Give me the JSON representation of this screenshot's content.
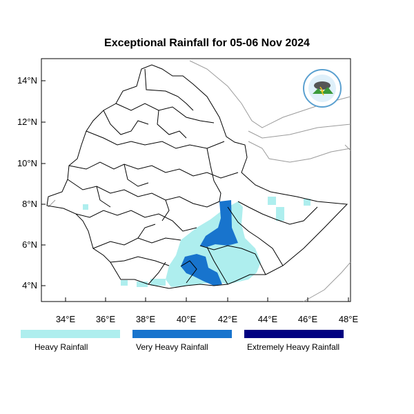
{
  "title": "Exceptional Rainfall for 05-06 Nov 2024",
  "axes": {
    "lat_labels": [
      "14°N",
      "12°N",
      "10°N",
      "8°N",
      "6°N",
      "4°N"
    ],
    "lon_labels": [
      "34°E",
      "36°E",
      "38°E",
      "40°E",
      "42°E",
      "44°E",
      "46°E",
      "48°E"
    ]
  },
  "legend": [
    {
      "label": "Heavy Rainfall",
      "color": "#aeeeee"
    },
    {
      "label": "Very Heavy Rainfall",
      "color": "#1874cd"
    },
    {
      "label": "Extremely Heavy Rainfall",
      "color": "#000080"
    }
  ],
  "logo": {
    "icon": "meteorology-agency-logo-icon"
  }
}
